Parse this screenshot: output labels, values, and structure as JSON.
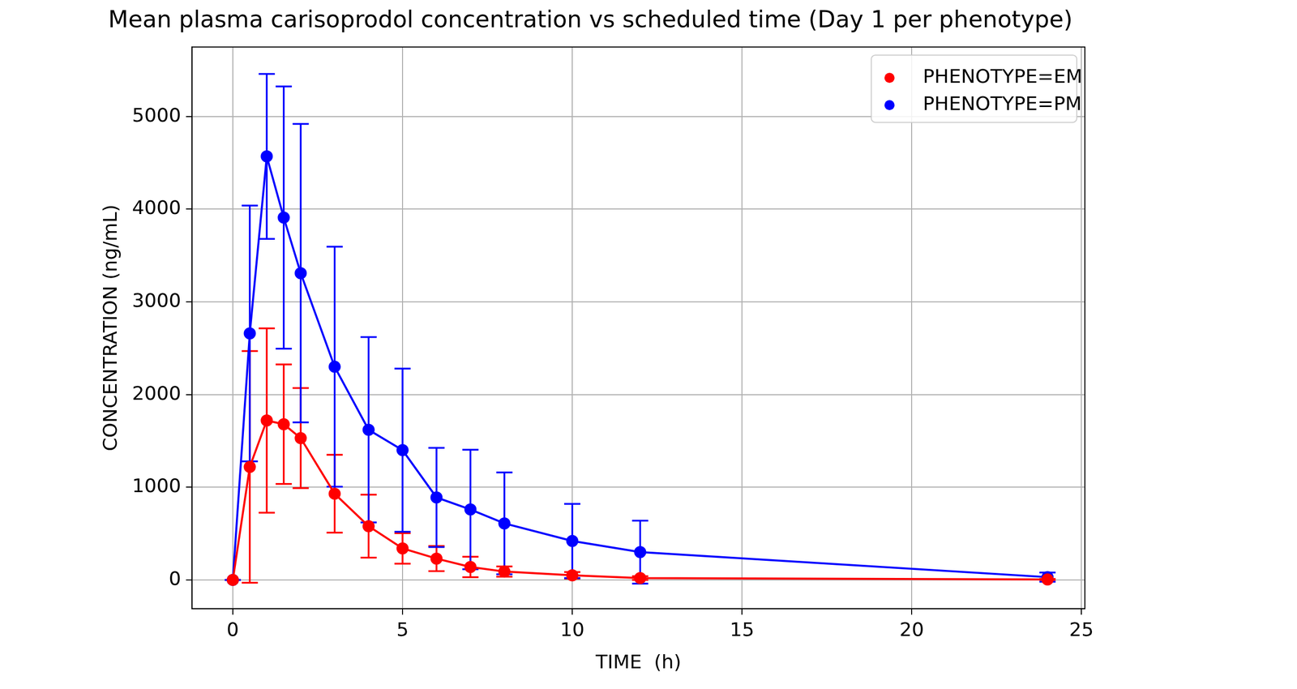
{
  "chart_data": {
    "type": "line",
    "title": "Mean plasma carisoprodol concentration vs scheduled time (Day 1 per phenotype)",
    "x_label": "TIME  (h)",
    "y_label": "CONCENTRATION (ng/mL)",
    "x": [
      0,
      0.5,
      1,
      1.5,
      2,
      3,
      4,
      5,
      6,
      7,
      8,
      10,
      12,
      24
    ],
    "series": [
      {
        "name": "PHENOTYPE=EM",
        "color": "#ff0000",
        "marker": "circle",
        "line_style": "solid",
        "values": [
          0,
          1220,
          1720,
          1680,
          1530,
          930,
          580,
          340,
          230,
          140,
          90,
          50,
          20,
          5
        ],
        "error": [
          0,
          1250,
          995,
          645,
          540,
          420,
          340,
          165,
          135,
          110,
          55,
          35,
          20,
          5
        ]
      },
      {
        "name": "PHENOTYPE=PM",
        "color": "#0000ff",
        "marker": "circle",
        "line_style": "solid",
        "values": [
          0,
          2660,
          4570,
          3910,
          3310,
          2300,
          1620,
          1400,
          890,
          760,
          610,
          420,
          300,
          30
        ],
        "error": [
          0,
          1380,
          890,
          1415,
          1610,
          1295,
          1000,
          880,
          535,
          645,
          550,
          400,
          340,
          50
        ]
      }
    ],
    "xlim": [
      -1.2,
      25.1
    ],
    "ylim": [
      -310,
      5750
    ],
    "xticks": [
      0,
      5,
      10,
      15,
      20,
      25
    ],
    "yticks": [
      0,
      1000,
      2000,
      3000,
      4000,
      5000
    ],
    "grid": true,
    "legend": "upper right"
  }
}
